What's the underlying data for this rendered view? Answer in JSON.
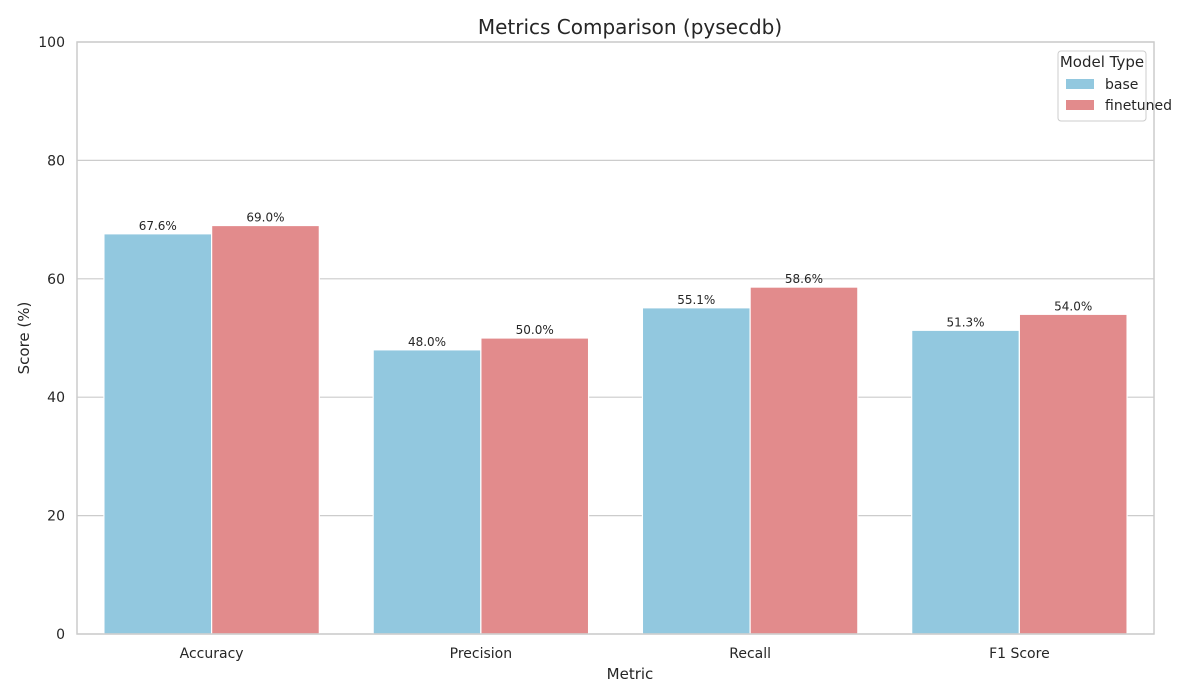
{
  "chart_data": {
    "type": "bar",
    "title": "Metrics Comparison (pysecdb)",
    "xlabel": "Metric",
    "ylabel": "Score (%)",
    "ylim": [
      0,
      100
    ],
    "yticks": [
      0,
      20,
      40,
      60,
      80,
      100
    ],
    "grid": true,
    "categories": [
      "Accuracy",
      "Precision",
      "Recall",
      "F1 Score"
    ],
    "series": [
      {
        "name": "base",
        "color": "#92c8df",
        "values": [
          67.6,
          48.0,
          55.1,
          51.3
        ],
        "labels": [
          "67.6%",
          "48.0%",
          "55.1%",
          "51.3%"
        ]
      },
      {
        "name": "finetuned",
        "color": "#e28b8c",
        "values": [
          69.0,
          50.0,
          58.6,
          54.0
        ],
        "labels": [
          "69.0%",
          "50.0%",
          "58.6%",
          "54.0%"
        ]
      }
    ],
    "legend": {
      "title": "Model Type",
      "position": "top-right"
    }
  }
}
